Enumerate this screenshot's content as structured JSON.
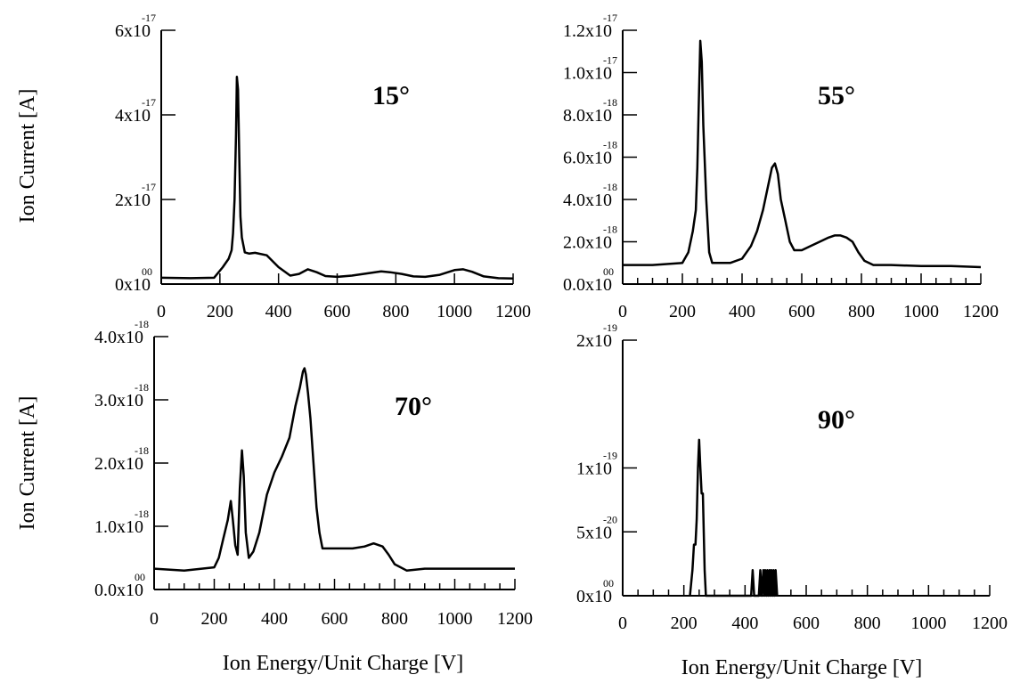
{
  "chart_data": [
    {
      "type": "line",
      "label": "15°",
      "ylabel": "Ion Current [A]",
      "xlabel": "",
      "xlim": [
        0,
        1200
      ],
      "ylim": [
        0,
        6e-17
      ],
      "xticks": [
        {
          "value": 0,
          "label": "0"
        },
        {
          "value": 200,
          "label": "200"
        },
        {
          "value": 400,
          "label": "400"
        },
        {
          "value": 600,
          "label": "600"
        },
        {
          "value": 800,
          "label": "800"
        },
        {
          "value": 1000,
          "label": "1000"
        },
        {
          "value": 1200,
          "label": "1200"
        }
      ],
      "yticks": [
        {
          "value": 0,
          "mantissa": "0x10",
          "exponent": "00"
        },
        {
          "value": 2e-17,
          "mantissa": "2x10",
          "exponent": "-17"
        },
        {
          "value": 4e-17,
          "mantissa": "4x10",
          "exponent": "-17"
        },
        {
          "value": 6e-17,
          "mantissa": "6x10",
          "exponent": "-17"
        }
      ],
      "series": [
        {
          "x": [
            0,
            100,
            180,
            210,
            230,
            240,
            245,
            250,
            255,
            258,
            262,
            266,
            270,
            275,
            285,
            300,
            320,
            360,
            400,
            440,
            470,
            500,
            530,
            560,
            600,
            650,
            700,
            750,
            780,
            820,
            860,
            900,
            950,
            1000,
            1030,
            1060,
            1100,
            1150,
            1200
          ],
          "y": [
            1.5e-18,
            1.4e-18,
            1.5e-18,
            4e-18,
            6e-18,
            8e-18,
            1.2e-17,
            2e-17,
            3.5e-17,
            4.9e-17,
            4.6e-17,
            3e-17,
            1.6e-17,
            1.1e-17,
            7.5e-18,
            7.2e-18,
            7.4e-18,
            6.8e-18,
            4e-18,
            2e-18,
            2.4e-18,
            3.5e-18,
            2.8e-18,
            1.9e-18,
            1.7e-18,
            2e-18,
            2.5e-18,
            3e-18,
            2.8e-18,
            2.4e-18,
            1.8e-18,
            1.7e-18,
            2.2e-18,
            3.3e-18,
            3.5e-18,
            2.9e-18,
            1.8e-18,
            1.4e-18,
            1.3e-18
          ]
        }
      ]
    },
    {
      "type": "line",
      "label": "55°",
      "ylabel": "",
      "xlabel": "",
      "xlim": [
        0,
        1200
      ],
      "ylim": [
        0,
        1.2e-17
      ],
      "xticks": [
        {
          "value": 0,
          "label": "0"
        },
        {
          "value": 200,
          "label": "200"
        },
        {
          "value": 400,
          "label": "400"
        },
        {
          "value": 600,
          "label": "600"
        },
        {
          "value": 800,
          "label": "800"
        },
        {
          "value": 1000,
          "label": "1000"
        },
        {
          "value": 1200,
          "label": "1200"
        }
      ],
      "yticks": [
        {
          "value": 0,
          "mantissa": "0.0x10",
          "exponent": "00"
        },
        {
          "value": 2e-18,
          "mantissa": "2.0x10",
          "exponent": "-18"
        },
        {
          "value": 4e-18,
          "mantissa": "4.0x10",
          "exponent": "-18"
        },
        {
          "value": 6e-18,
          "mantissa": "6.0x10",
          "exponent": "-18"
        },
        {
          "value": 8e-18,
          "mantissa": "8.0x10",
          "exponent": "-18"
        },
        {
          "value": 1e-17,
          "mantissa": "1.0x10",
          "exponent": "-17"
        },
        {
          "value": 1.2e-17,
          "mantissa": "1.2x10",
          "exponent": "-17"
        }
      ],
      "series": [
        {
          "x": [
            0,
            100,
            200,
            220,
            235,
            245,
            250,
            255,
            260,
            265,
            270,
            280,
            290,
            300,
            330,
            360,
            400,
            430,
            450,
            470,
            485,
            500,
            510,
            520,
            530,
            545,
            560,
            575,
            600,
            630,
            660,
            690,
            710,
            730,
            750,
            770,
            790,
            810,
            840,
            900,
            1000,
            1100,
            1200
          ],
          "y": [
            9e-19,
            9e-19,
            1e-18,
            1.5e-18,
            2.5e-18,
            3.5e-18,
            5.5e-18,
            8.5e-18,
            1.15e-17,
            1.05e-17,
            7.5e-18,
            4e-18,
            1.5e-18,
            1e-18,
            1e-18,
            1e-18,
            1.2e-18,
            1.8e-18,
            2.5e-18,
            3.5e-18,
            4.5e-18,
            5.5e-18,
            5.7e-18,
            5.2e-18,
            4e-18,
            3e-18,
            2e-18,
            1.6e-18,
            1.6e-18,
            1.8e-18,
            2e-18,
            2.2e-18,
            2.3e-18,
            2.3e-18,
            2.2e-18,
            2e-18,
            1.5e-18,
            1.1e-18,
            9e-19,
            9e-19,
            8.5e-19,
            8.5e-19,
            8e-19
          ]
        }
      ]
    },
    {
      "type": "line",
      "label": "70°",
      "ylabel": "Ion Current [A]",
      "xlabel": "Ion Energy/Unit Charge [V]",
      "xlim": [
        0,
        1200
      ],
      "ylim": [
        0,
        4e-18
      ],
      "xticks": [
        {
          "value": 0,
          "label": "0"
        },
        {
          "value": 200,
          "label": "200"
        },
        {
          "value": 400,
          "label": "400"
        },
        {
          "value": 600,
          "label": "600"
        },
        {
          "value": 800,
          "label": "800"
        },
        {
          "value": 1000,
          "label": "1000"
        },
        {
          "value": 1200,
          "label": "1200"
        }
      ],
      "yticks": [
        {
          "value": 0,
          "mantissa": "0.0x10",
          "exponent": "00"
        },
        {
          "value": 1e-18,
          "mantissa": "1.0x10",
          "exponent": "-18"
        },
        {
          "value": 2e-18,
          "mantissa": "2.0x10",
          "exponent": "-18"
        },
        {
          "value": 3e-18,
          "mantissa": "3.0x10",
          "exponent": "-18"
        },
        {
          "value": 4e-18,
          "mantissa": "4.0x10",
          "exponent": "-18"
        }
      ],
      "series": [
        {
          "x": [
            0,
            100,
            200,
            215,
            230,
            245,
            255,
            262,
            270,
            278,
            285,
            292,
            298,
            305,
            315,
            330,
            350,
            375,
            400,
            425,
            450,
            470,
            485,
            495,
            500,
            505,
            512,
            520,
            530,
            540,
            550,
            560,
            580,
            620,
            660,
            700,
            730,
            760,
            780,
            800,
            840,
            900,
            1000,
            1100,
            1200
          ],
          "y": [
            3.3e-19,
            3e-19,
            3.5e-19,
            5e-19,
            8e-19,
            1.1e-18,
            1.4e-18,
            1.1e-18,
            7e-19,
            5.5e-19,
            1.6e-18,
            2.2e-18,
            1.8e-18,
            9e-19,
            5e-19,
            6e-19,
            9e-19,
            1.5e-18,
            1.85e-18,
            2.1e-18,
            2.4e-18,
            2.9e-18,
            3.2e-18,
            3.45e-18,
            3.5e-18,
            3.4e-18,
            3.1e-18,
            2.7e-18,
            2e-18,
            1.3e-18,
            9e-19,
            6.5e-19,
            6.5e-19,
            6.5e-19,
            6.5e-19,
            6.8e-19,
            7.3e-19,
            6.8e-19,
            5.5e-19,
            4e-19,
            3e-19,
            3.3e-19,
            3.3e-19,
            3.3e-19,
            3.3e-19
          ]
        }
      ]
    },
    {
      "type": "line",
      "label": "90°",
      "ylabel": "",
      "xlabel": "Ion Energy/Unit Charge [V]",
      "xlim": [
        0,
        1200
      ],
      "ylim": [
        0,
        2e-19
      ],
      "xticks": [
        {
          "value": 0,
          "label": "0"
        },
        {
          "value": 200,
          "label": "200"
        },
        {
          "value": 400,
          "label": "400"
        },
        {
          "value": 600,
          "label": "600"
        },
        {
          "value": 800,
          "label": "800"
        },
        {
          "value": 1000,
          "label": "1000"
        },
        {
          "value": 1200,
          "label": "1200"
        }
      ],
      "yticks": [
        {
          "value": 0,
          "mantissa": "0x10",
          "exponent": "00"
        },
        {
          "value": 5e-20,
          "mantissa": "5x10",
          "exponent": "-20"
        },
        {
          "value": 1e-19,
          "mantissa": "1x10",
          "exponent": "-19"
        },
        {
          "value": 2e-19,
          "mantissa": "2x10",
          "exponent": "-19"
        }
      ],
      "series": [
        {
          "x": [
            220,
            228,
            233,
            238,
            242,
            246,
            250,
            254,
            258,
            262,
            268,
            272,
            420,
            425,
            430,
            445,
            450,
            455,
            460,
            463,
            466,
            470,
            473,
            476,
            480,
            483,
            486,
            490,
            493,
            496,
            500,
            505
          ],
          "y": [
            0,
            2e-20,
            4e-20,
            4e-20,
            6e-20,
            1e-19,
            1.22e-19,
            1e-19,
            8e-20,
            8e-20,
            2e-20,
            0,
            0,
            2e-20,
            0,
            0,
            2e-20,
            0,
            2e-20,
            0,
            2e-20,
            0,
            2e-20,
            0,
            2e-20,
            0,
            2e-20,
            0,
            2e-20,
            0,
            2e-20,
            0
          ]
        }
      ]
    }
  ]
}
